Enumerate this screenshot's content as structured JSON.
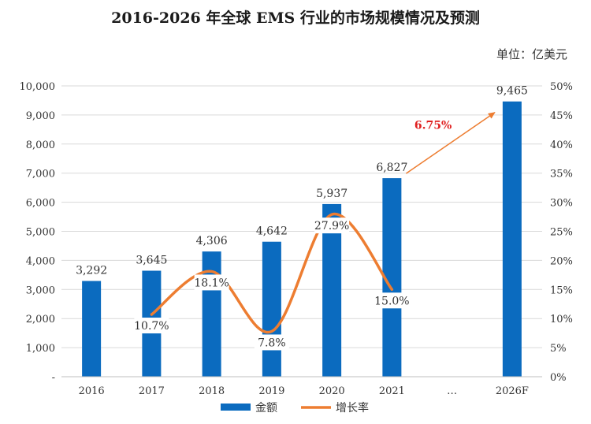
{
  "chart_data": {
    "type": "bar+line",
    "title": "2016-2026 年全球 EMS 行业的市场规模情况及预测",
    "unit_note": "单位：亿美元",
    "categories": [
      "2016",
      "2017",
      "2018",
      "2019",
      "2020",
      "2021",
      "…",
      "2026F"
    ],
    "bar_series": {
      "name": "金额",
      "color": "#0b6bbf",
      "values": [
        3292,
        3645,
        4306,
        4642,
        5937,
        6827,
        null,
        9465
      ],
      "labels": [
        "3,292",
        "3,645",
        "4,306",
        "4,642",
        "5,937",
        "6,827",
        "",
        "9,465"
      ]
    },
    "line_series": {
      "name": "增长率",
      "color": "#ed7d31",
      "values": [
        null,
        10.7,
        18.1,
        7.8,
        27.9,
        15.0,
        null,
        null
      ],
      "labels": [
        "",
        "10.7%",
        "18.1%",
        "7.8%",
        "27.9%",
        "15.0%",
        "",
        ""
      ]
    },
    "cagr_annotation": {
      "label": "6.75%",
      "color": "#e02020",
      "from": "2021",
      "to": "2026F"
    },
    "y_left": {
      "range": [
        0,
        10000
      ],
      "ticks": [
        0,
        1000,
        2000,
        3000,
        4000,
        5000,
        6000,
        7000,
        8000,
        9000,
        10000
      ],
      "tick_labels": [
        "-",
        "1,000",
        "2,000",
        "3,000",
        "4,000",
        "5,000",
        "6,000",
        "7,000",
        "8,000",
        "9,000",
        "10,000"
      ]
    },
    "y_right": {
      "range": [
        0,
        50
      ],
      "ticks": [
        0,
        5,
        10,
        15,
        20,
        25,
        30,
        35,
        40,
        45,
        50
      ],
      "tick_labels": [
        "0%",
        "5%",
        "10%",
        "15%",
        "20%",
        "25%",
        "30%",
        "35%",
        "40%",
        "45%",
        "50%"
      ]
    },
    "grid": true,
    "legend": "bottom-center"
  }
}
